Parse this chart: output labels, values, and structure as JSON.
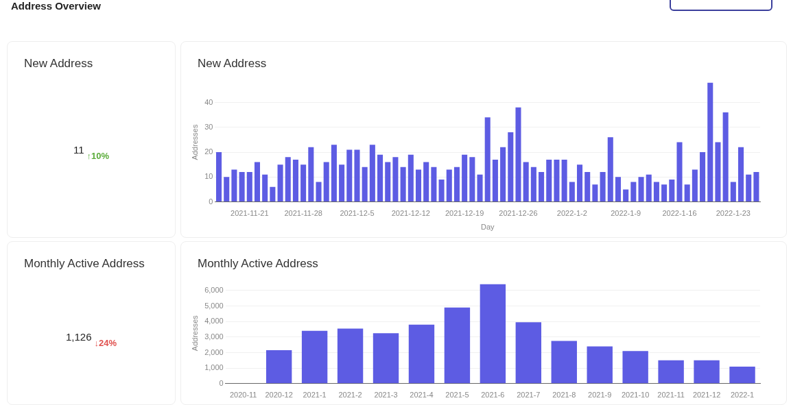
{
  "chart_data": [
    {
      "type": "other",
      "title": "Address Overview"
    },
    {
      "type": "other",
      "title": "New Address",
      "annotations": [
        "11",
        "↑10%"
      ],
      "colors": [
        "#222222",
        "#5cad3c"
      ]
    },
    {
      "type": "bar",
      "title": "New Address",
      "xlabel": "Day",
      "ylabel": "Addresses",
      "color": "#5d5ce3",
      "grid": "y",
      "legend": false,
      "categories": [
        null,
        null,
        null,
        null,
        "2021-11-21",
        null,
        null,
        null,
        null,
        null,
        null,
        "2021-11-28",
        null,
        null,
        null,
        null,
        null,
        null,
        "2021-12-5",
        null,
        null,
        null,
        null,
        null,
        null,
        "2021-12-12",
        null,
        null,
        null,
        null,
        null,
        null,
        "2021-12-19",
        null,
        null,
        null,
        null,
        null,
        null,
        "2021-12-26",
        null,
        null,
        null,
        null,
        null,
        null,
        "2022-1-2",
        null,
        null,
        null,
        null,
        null,
        null,
        "2022-1-9",
        null,
        null,
        null,
        null,
        null,
        null,
        "2022-1-16",
        null,
        null,
        null,
        null,
        null,
        null,
        "2022-1-23",
        null,
        null,
        null
      ],
      "values": [
        20,
        10,
        13,
        12,
        12,
        16,
        11,
        6,
        15,
        18,
        17,
        15,
        22,
        8,
        16,
        23,
        15,
        21,
        21,
        14,
        23,
        19,
        16,
        18,
        14,
        19,
        13,
        16,
        14,
        9,
        13,
        14,
        19,
        18,
        11,
        34,
        17,
        22,
        28,
        38,
        16,
        14,
        12,
        17,
        17,
        17,
        8,
        15,
        12,
        7,
        12,
        26,
        10,
        5,
        8,
        10,
        11,
        8,
        7,
        9,
        24,
        7,
        13,
        20,
        48,
        24,
        36,
        8,
        22,
        11,
        12
      ],
      "ylim": [
        0,
        48
      ],
      "yticks": [
        0,
        10,
        20,
        30,
        40
      ]
    },
    {
      "type": "other",
      "title": "Monthly Active Address",
      "annotations": [
        "1,126",
        "↓24%"
      ],
      "colors": [
        "#222222",
        "#e0524f"
      ]
    },
    {
      "type": "bar",
      "title": "Monthly Active Address",
      "ylabel": "Addresses",
      "color": "#5d5ce3",
      "grid": "y",
      "legend": false,
      "categories": [
        "2020-11",
        "2020-12",
        "2021-1",
        "2021-2",
        "2021-3",
        "2021-4",
        "2021-5",
        "2021-6",
        "2021-7",
        "2021-8",
        "2021-9",
        "2021-10",
        "2021-11",
        "2021-12",
        "2022-1"
      ],
      "values": [
        0,
        2150,
        3400,
        3550,
        3250,
        3800,
        4900,
        6400,
        3950,
        2750,
        2400,
        2100,
        1500,
        1500,
        1100
      ],
      "ylim": [
        0,
        6500
      ],
      "yticks": [
        0,
        {
          "value": 1000,
          "label": "1,000"
        },
        {
          "value": 2000,
          "label": "2,000"
        },
        {
          "value": 3000,
          "label": "3,000"
        },
        {
          "value": 4000,
          "label": "4,000"
        },
        {
          "value": 5000,
          "label": "5,000"
        },
        {
          "value": 6000,
          "label": "6,000"
        }
      ]
    }
  ]
}
